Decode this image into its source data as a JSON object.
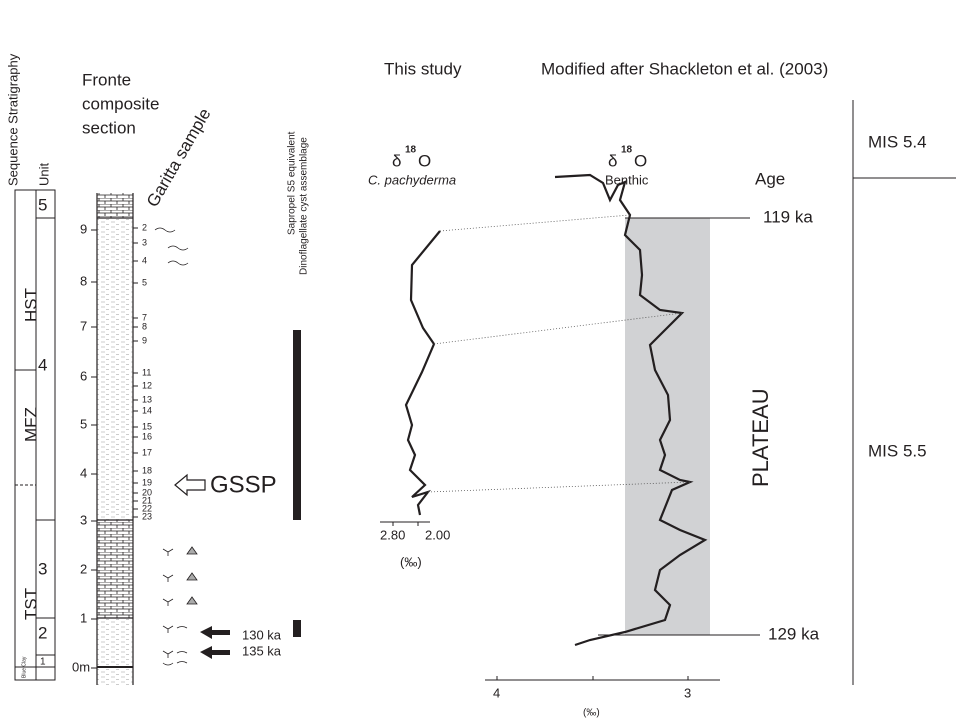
{
  "headers": {
    "sequence": "Sequence Stratigraphy",
    "unit": "Unit",
    "fronte": [
      "Fronte",
      "composite",
      "section"
    ],
    "garitta": "Garitta sample",
    "sapropel": "Sapropel S5 equivalent",
    "dino": "Dinoflagellate cyst assemblage",
    "this_study": "This study",
    "modified": "Modified after Shackleton et al. (2003)"
  },
  "sequence": [
    "HST",
    "MFZ",
    "TST"
  ],
  "units": [
    "5",
    "4",
    "3",
    "2",
    "1"
  ],
  "blue_clay": "Blue Clay",
  "depths": [
    "0m",
    "1",
    "2",
    "3",
    "4",
    "5",
    "6",
    "7",
    "8",
    "9"
  ],
  "samples": [
    "2",
    "3",
    "4",
    "5",
    "7",
    "8",
    "9",
    "11",
    "12",
    "13",
    "14",
    "15",
    "16",
    "17",
    "18",
    "19",
    "20",
    "21",
    "22",
    "23"
  ],
  "sample_ages": [
    "130 ka",
    "135 ka"
  ],
  "gssp": "GSSP",
  "left_curve": {
    "delta": "δ",
    "sup": "18",
    "o": "O",
    "species": "C. pachyderma",
    "ticks": [
      "2.80",
      "2.00"
    ],
    "unit": "(‰)"
  },
  "right_curve": {
    "delta": "δ",
    "sup": "18",
    "o": "O",
    "label": "Benthic",
    "age": "Age",
    "ages": [
      "119 ka",
      "129 ka"
    ],
    "plateau": "PLATEAU",
    "ticks": [
      "4",
      "3"
    ],
    "unit": "(‰)"
  },
  "mis": [
    "MIS 5.4",
    "MIS 5.5"
  ]
}
